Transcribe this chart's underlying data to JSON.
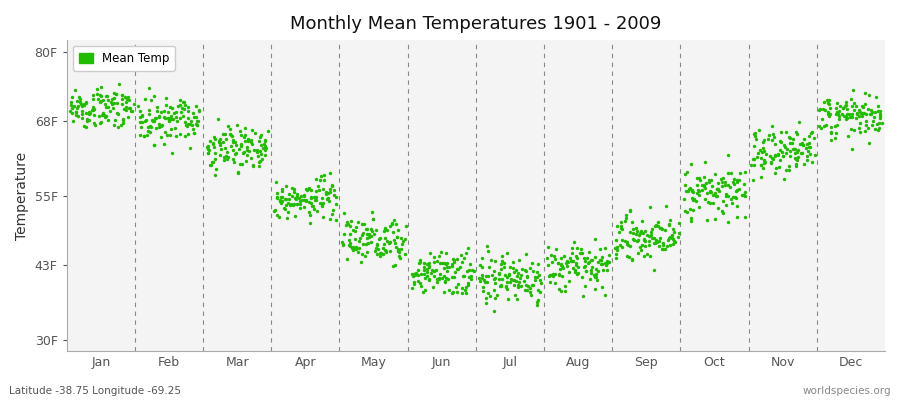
{
  "title": "Monthly Mean Temperatures 1901 - 2009",
  "ylabel": "Temperature",
  "subtitle_left": "Latitude -38.75 Longitude -69.25",
  "subtitle_right": "worldspecies.org",
  "legend_label": "Mean Temp",
  "y_tick_labels": [
    "30F",
    "43F",
    "55F",
    "68F",
    "80F"
  ],
  "y_tick_values": [
    30,
    43,
    55,
    68,
    80
  ],
  "ylim": [
    28,
    82
  ],
  "months": [
    "Jan",
    "Feb",
    "Mar",
    "Apr",
    "May",
    "Jun",
    "Jul",
    "Aug",
    "Sep",
    "Oct",
    "Nov",
    "Dec"
  ],
  "dot_color": "#22bb00",
  "background_color": "#f4f4f4",
  "mean_temps_f": [
    70.5,
    68.5,
    63.0,
    54.5,
    47.5,
    41.5,
    40.5,
    43.0,
    48.0,
    55.5,
    62.5,
    68.5
  ],
  "std_temps_f": [
    1.8,
    2.0,
    2.2,
    2.0,
    2.0,
    2.0,
    2.0,
    2.0,
    2.0,
    2.2,
    2.2,
    2.0
  ],
  "n_years": 109,
  "seed": 7,
  "dot_size": 6,
  "grid_color": "#888888",
  "spine_color": "#aaaaaa",
  "title_fontsize": 13,
  "axis_fontsize": 9
}
